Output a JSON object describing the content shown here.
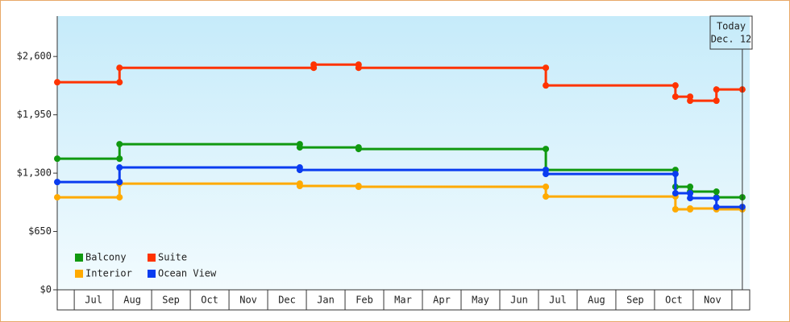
{
  "chart_data": {
    "type": "step-line",
    "categories": [
      "Jul",
      "Aug",
      "Sep",
      "Oct",
      "Nov",
      "Dec",
      "Jan",
      "Feb",
      "Mar",
      "Apr",
      "May",
      "Jun",
      "Jul",
      "Aug",
      "Sep",
      "Oct",
      "Nov"
    ],
    "xlim": [
      -0.44,
      17.46
    ],
    "ylim": [
      0,
      3050
    ],
    "yticks": [
      {
        "value": 0,
        "label": "$0"
      },
      {
        "value": 650,
        "label": "$650"
      },
      {
        "value": 1300,
        "label": "$1,300"
      },
      {
        "value": 1950,
        "label": "$1,950"
      },
      {
        "value": 2600,
        "label": "$2,600"
      }
    ],
    "series": [
      {
        "name": "Balcony",
        "color": "#109910",
        "x": [
          -0.44,
          1.17,
          5.83,
          7.35,
          12.19,
          15.54,
          15.92,
          16.6
        ],
        "values": [
          1461,
          1623,
          1587,
          1569,
          1336,
          1148,
          1094,
          1031
        ]
      },
      {
        "name": "Suite",
        "color": "#ff3300",
        "x": [
          -0.44,
          1.17,
          6.19,
          7.35,
          12.19,
          15.54,
          15.92,
          16.6
        ],
        "values": [
          2313,
          2474,
          2510,
          2474,
          2277,
          2152,
          2107,
          2232
        ]
      },
      {
        "name": "Interior",
        "color": "#ffaa00",
        "x": [
          -0.44,
          1.17,
          5.83,
          7.35,
          12.19,
          15.54,
          15.92,
          16.6
        ],
        "values": [
          1031,
          1183,
          1157,
          1148,
          1040,
          897,
          906,
          897
        ]
      },
      {
        "name": "Ocean View",
        "color": "#0a3cf0",
        "x": [
          -0.44,
          1.17,
          5.83,
          12.19,
          15.54,
          15.92,
          16.6
        ],
        "values": [
          1201,
          1363,
          1336,
          1291,
          1076,
          1022,
          923
        ]
      }
    ],
    "today": {
      "x": 17.27,
      "label": [
        "Today",
        "Dec. 12"
      ]
    },
    "legend": "lower left"
  }
}
